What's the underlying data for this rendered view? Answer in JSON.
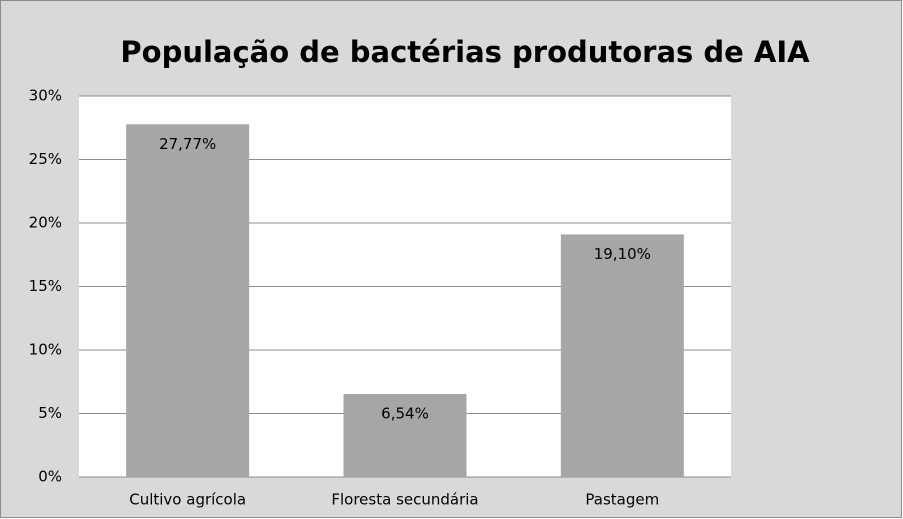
{
  "chart_data": {
    "type": "bar",
    "title": "População de bactérias produtoras de AIA",
    "categories": [
      "Cultivo agrícola",
      "Floresta secundária",
      "Pastagem"
    ],
    "values": [
      27.77,
      6.54,
      19.1
    ],
    "value_labels": [
      "27,77%",
      "6,54%",
      "19,10%"
    ],
    "color": "#a6a6a6",
    "ylim": [
      0,
      30
    ],
    "yticks": [
      {
        "value": 0,
        "label": "0%"
      },
      {
        "value": 5,
        "label": "5%"
      },
      {
        "value": 10,
        "label": "10%"
      },
      {
        "value": 15,
        "label": "15%"
      },
      {
        "value": 20,
        "label": "20%"
      },
      {
        "value": 25,
        "label": "25%"
      },
      {
        "value": 30,
        "label": "30%"
      }
    ],
    "grid": true
  }
}
